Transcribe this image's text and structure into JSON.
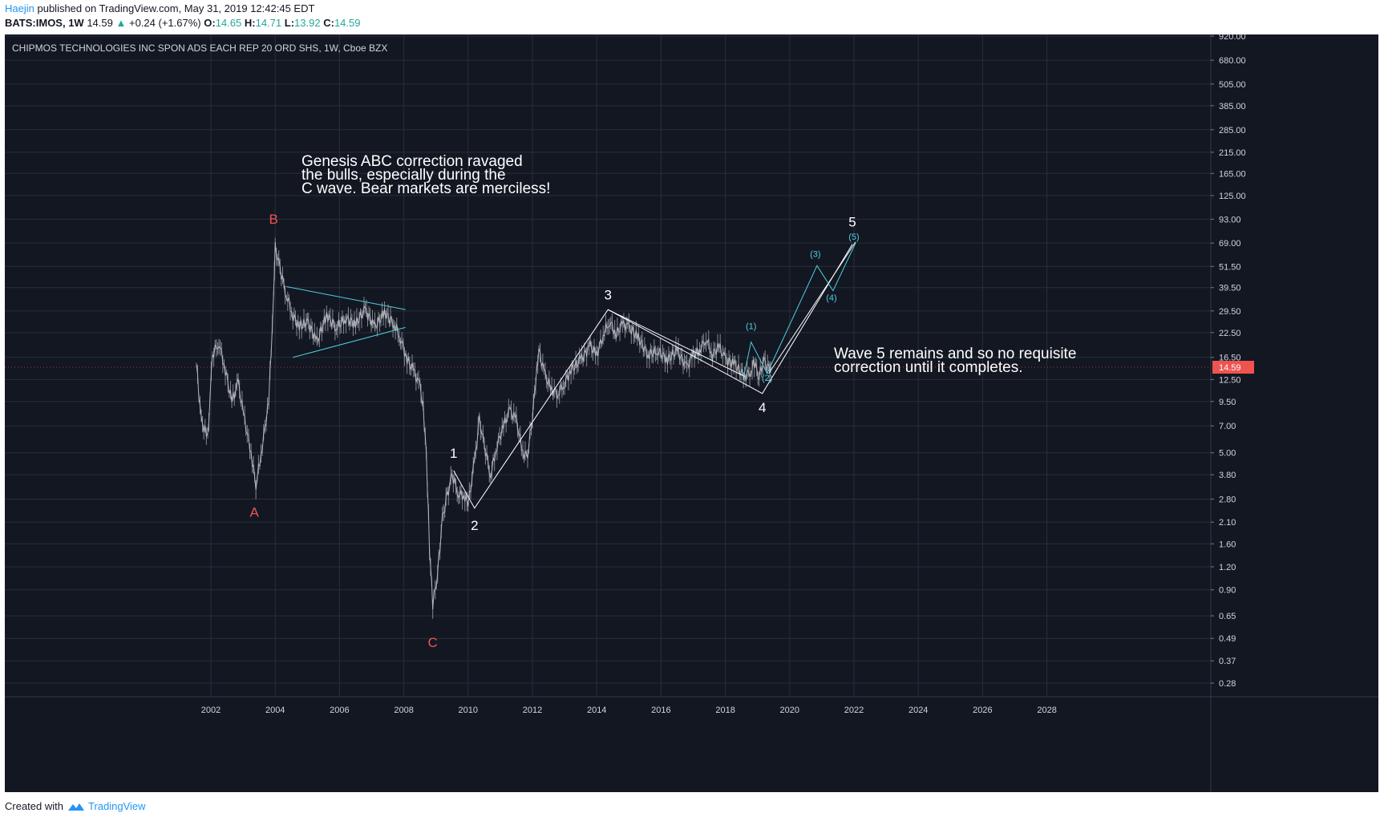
{
  "header": {
    "author": "Haejin",
    "published": "published on TradingView.com, May 31, 2019 12:42:45 EDT",
    "symbol": "BATS:IMOS, 1W",
    "last": "14.59",
    "change": "+0.24 (+1.67%)",
    "o_label": "O:",
    "o_value": "14.65",
    "h_label": "H:",
    "h_value": "14.71",
    "l_label": "L:",
    "l_value": "13.92",
    "c_label": "C:",
    "c_value": "14.59"
  },
  "footer": {
    "created_with": "Created with",
    "brand": "TradingView"
  },
  "colors": {
    "background": "#131722",
    "grid": "#2a2e39",
    "text": "#d1d4dc",
    "price_badge": "#ef5350",
    "cyan": "#4dd0e1",
    "red_label": "#ef5350",
    "white": "#ffffff",
    "candle": "#b5b8bf"
  },
  "chart_data": {
    "type": "line",
    "title": "CHIPMOS TECHNOLOGIES INC SPON ADS EACH REP 20 ORD SHS, 1W, Cboe BZX",
    "scale": "log",
    "x_ticks": [
      "2002",
      "2004",
      "2006",
      "2008",
      "2010",
      "2012",
      "2014",
      "2016",
      "2018",
      "2020",
      "2022",
      "2024",
      "2026",
      "2028"
    ],
    "y_ticks": [
      "920.00",
      "680.00",
      "505.00",
      "385.00",
      "285.00",
      "215.00",
      "165.00",
      "125.00",
      "93.00",
      "69.00",
      "51.50",
      "39.50",
      "29.50",
      "22.50",
      "16.50",
      "12.50",
      "9.50",
      "7.00",
      "5.00",
      "3.80",
      "2.80",
      "2.10",
      "1.60",
      "1.20",
      "0.90",
      "0.65",
      "0.49",
      "0.37",
      "0.28"
    ],
    "current_price": "14.59",
    "price_series": [
      [
        2001.55,
        15
      ],
      [
        2001.7,
        7.5
      ],
      [
        2001.9,
        6.0
      ],
      [
        2002.05,
        17
      ],
      [
        2002.25,
        20
      ],
      [
        2002.45,
        14
      ],
      [
        2002.65,
        9.5
      ],
      [
        2002.85,
        12
      ],
      [
        2003.05,
        7.5
      ],
      [
        2003.25,
        5.0
      ],
      [
        2003.4,
        3.3
      ],
      [
        2003.6,
        5.5
      ],
      [
        2003.8,
        9.5
      ],
      [
        2003.95,
        35
      ],
      [
        2004.0,
        65
      ],
      [
        2004.15,
        50
      ],
      [
        2004.35,
        36
      ],
      [
        2004.55,
        28
      ],
      [
        2004.75,
        24
      ],
      [
        2005.0,
        26
      ],
      [
        2005.3,
        20
      ],
      [
        2005.6,
        28
      ],
      [
        2005.9,
        24
      ],
      [
        2006.2,
        27
      ],
      [
        2006.5,
        25
      ],
      [
        2006.8,
        30
      ],
      [
        2007.1,
        24
      ],
      [
        2007.4,
        29
      ],
      [
        2007.7,
        25
      ],
      [
        2007.9,
        21
      ],
      [
        2008.1,
        16
      ],
      [
        2008.3,
        14
      ],
      [
        2008.5,
        11.5
      ],
      [
        2008.6,
        9
      ],
      [
        2008.7,
        5
      ],
      [
        2008.8,
        1.5
      ],
      [
        2008.9,
        0.75
      ],
      [
        2009.05,
        1.1
      ],
      [
        2009.2,
        2.2
      ],
      [
        2009.35,
        2.9
      ],
      [
        2009.5,
        3.8
      ],
      [
        2009.7,
        3.0
      ],
      [
        2009.9,
        2.9
      ],
      [
        2010.0,
        2.6
      ],
      [
        2010.2,
        4.5
      ],
      [
        2010.35,
        7.5
      ],
      [
        2010.5,
        5.5
      ],
      [
        2010.7,
        3.8
      ],
      [
        2010.9,
        5.5
      ],
      [
        2011.1,
        7
      ],
      [
        2011.3,
        8.5
      ],
      [
        2011.5,
        7.5
      ],
      [
        2011.7,
        5
      ],
      [
        2011.85,
        4.8
      ],
      [
        2012.0,
        8
      ],
      [
        2012.1,
        12
      ],
      [
        2012.2,
        18
      ],
      [
        2012.4,
        13
      ],
      [
        2012.6,
        11
      ],
      [
        2012.8,
        10.5
      ],
      [
        2013.0,
        12
      ],
      [
        2013.2,
        14
      ],
      [
        2013.5,
        16
      ],
      [
        2013.8,
        19
      ],
      [
        2014.0,
        17
      ],
      [
        2014.2,
        22
      ],
      [
        2014.4,
        26
      ],
      [
        2014.6,
        22
      ],
      [
        2014.8,
        25
      ],
      [
        2015.0,
        24
      ],
      [
        2015.3,
        21
      ],
      [
        2015.6,
        17
      ],
      [
        2015.9,
        18
      ],
      [
        2016.2,
        16
      ],
      [
        2016.5,
        18
      ],
      [
        2016.8,
        14.5
      ],
      [
        2017.0,
        17
      ],
      [
        2017.2,
        18
      ],
      [
        2017.4,
        21
      ],
      [
        2017.6,
        17
      ],
      [
        2017.8,
        19
      ],
      [
        2018.0,
        16
      ],
      [
        2018.3,
        15
      ],
      [
        2018.6,
        13
      ],
      [
        2018.8,
        14
      ],
      [
        2018.9,
        15.5
      ],
      [
        2019.05,
        13
      ],
      [
        2019.2,
        16
      ],
      [
        2019.35,
        14
      ],
      [
        2019.41,
        14.59
      ]
    ],
    "wave_labels": [
      {
        "text": "A",
        "x": 2003.35,
        "y": 2.25,
        "color": "red"
      },
      {
        "text": "B",
        "x": 2003.95,
        "y": 88,
        "color": "red"
      },
      {
        "text": "C",
        "x": 2008.9,
        "y": 0.44,
        "color": "red"
      },
      {
        "text": "1",
        "x": 2009.55,
        "y": 4.7,
        "color": "white"
      },
      {
        "text": "2",
        "x": 2010.2,
        "y": 1.9,
        "color": "white"
      },
      {
        "text": "3",
        "x": 2014.35,
        "y": 34,
        "color": "white"
      },
      {
        "text": "4",
        "x": 2019.15,
        "y": 8.3,
        "color": "white"
      },
      {
        "text": "5",
        "x": 2021.95,
        "y": 85,
        "color": "white"
      },
      {
        "text": "(1)",
        "x": 2018.8,
        "y": 23.5,
        "color": "cyan"
      },
      {
        "text": "(2)",
        "x": 2019.3,
        "y": 12.3,
        "color": "cyan"
      },
      {
        "text": "(3)",
        "x": 2020.8,
        "y": 58,
        "color": "cyan"
      },
      {
        "text": "(4)",
        "x": 2021.3,
        "y": 33.5,
        "color": "cyan"
      },
      {
        "text": "(5)",
        "x": 2022.0,
        "y": 72,
        "color": "cyan"
      }
    ],
    "triangle": [
      [
        [
          2004.35,
          40
        ],
        [
          2008.05,
          30
        ]
      ],
      [
        [
          2004.55,
          16.5
        ],
        [
          2008.05,
          24
        ]
      ]
    ],
    "wave_path_white": [
      [
        2009.55,
        4.0
      ],
      [
        2010.2,
        2.5
      ],
      [
        2014.35,
        30
      ],
      [
        2019.15,
        10.5
      ],
      [
        2021.95,
        68
      ]
    ],
    "channel_white": [
      [
        2019.35,
        13.5
      ],
      [
        2022.05,
        70
      ]
    ],
    "white_diag": [
      [
        2014.35,
        30
      ],
      [
        2018.6,
        13.0
      ]
    ],
    "wave_path_cyan": [
      [
        2018.55,
        12.5
      ],
      [
        2018.8,
        20
      ],
      [
        2019.3,
        13.5
      ],
      [
        2020.85,
        52
      ],
      [
        2021.35,
        38
      ],
      [
        2022.05,
        69
      ]
    ],
    "annotations": [
      [
        "Genesis ABC correction ravaged",
        "the bulls, especially during the",
        "C wave. Bear markets are merciless!"
      ],
      [
        "Wave 5 remains and so no requisite",
        "correction until it completes."
      ]
    ]
  }
}
